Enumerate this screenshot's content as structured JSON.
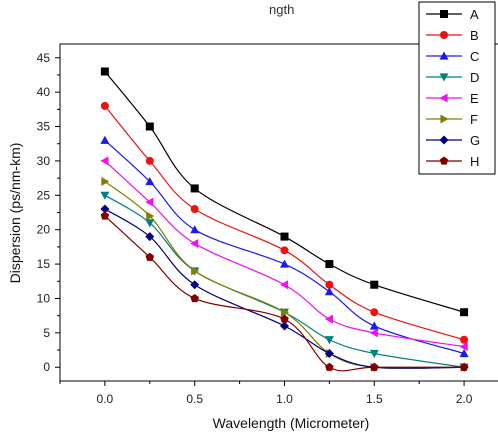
{
  "chart_data": {
    "type": "line",
    "title_partial": "ngth",
    "xlabel": "Wavelength (Micrometer)",
    "ylabel": "Dispersion (ps/nm-km)",
    "xlim": [
      -0.25,
      2.2
    ],
    "ylim": [
      -2,
      47
    ],
    "xticks": [
      "0.0",
      "0.5",
      "1.0",
      "1.5",
      "2.0"
    ],
    "yticks": [
      "0",
      "5",
      "10",
      "15",
      "20",
      "25",
      "30",
      "35",
      "40",
      "45"
    ],
    "legend_position": "top-right",
    "x": [
      0.0,
      0.25,
      0.5,
      1.0,
      1.25,
      1.5,
      2.0
    ],
    "series": [
      {
        "name": "A",
        "color": "#000000",
        "marker": "square",
        "values": [
          43,
          35,
          26,
          19,
          15,
          12,
          8
        ]
      },
      {
        "name": "B",
        "color": "#ee1111",
        "marker": "circle",
        "values": [
          38,
          30,
          23,
          17,
          12,
          8,
          4
        ]
      },
      {
        "name": "C",
        "color": "#1a1aee",
        "marker": "triangle-up",
        "values": [
          33,
          27,
          20,
          15,
          11,
          6,
          2
        ]
      },
      {
        "name": "D",
        "color": "#008080",
        "marker": "triangle-down",
        "values": [
          25,
          21,
          14,
          8,
          4,
          2,
          0
        ]
      },
      {
        "name": "E",
        "color": "#ee11ee",
        "marker": "triangle-left",
        "values": [
          30,
          24,
          18,
          12,
          7,
          5,
          3
        ]
      },
      {
        "name": "F",
        "color": "#808000",
        "marker": "triangle-right",
        "values": [
          27,
          22,
          14,
          8,
          2,
          0,
          0
        ]
      },
      {
        "name": "G",
        "color": "#000080",
        "marker": "diamond",
        "values": [
          23,
          19,
          12,
          6,
          2,
          0,
          0
        ]
      },
      {
        "name": "H",
        "color": "#800000",
        "marker": "pentagon",
        "values": [
          22,
          16,
          10,
          7,
          0,
          0,
          0
        ]
      }
    ]
  }
}
